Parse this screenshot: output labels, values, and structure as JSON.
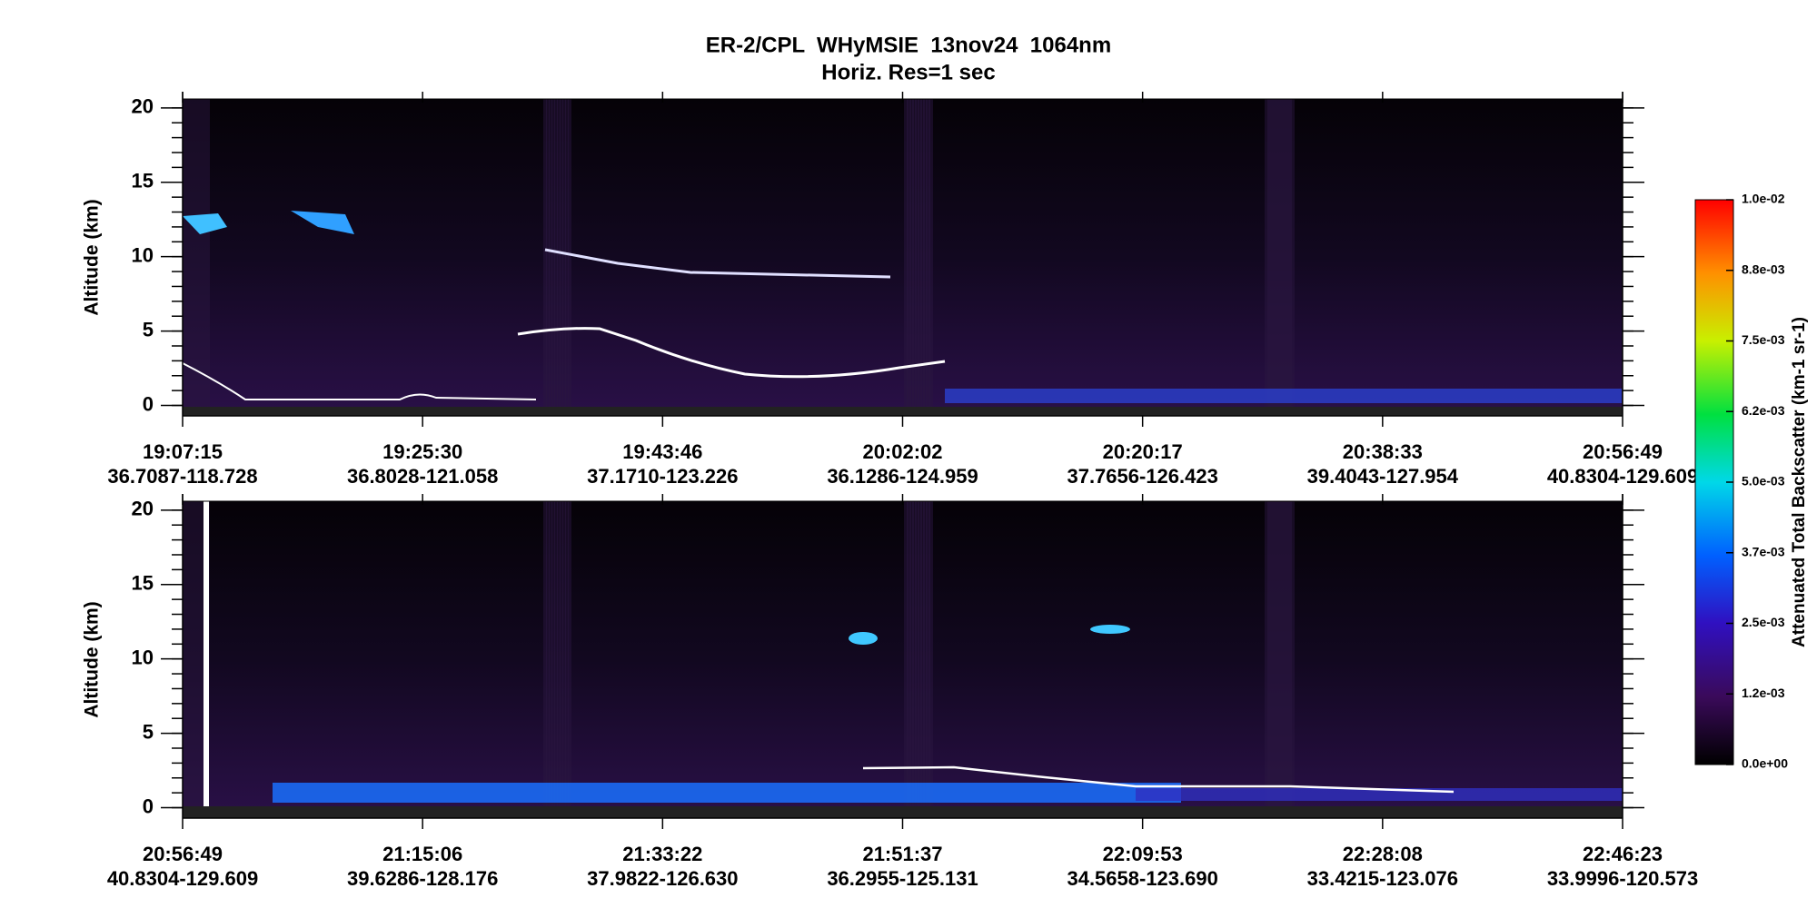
{
  "title": "ER-2/CPL  WHyMSIE  13nov24  1064nm",
  "subtitle": "Horiz. Res=1 sec",
  "chart_data": [
    {
      "type": "heatmap",
      "y_label": "Altitude (km)",
      "ylim": [
        -0.7,
        20.6
      ],
      "yticks": [
        0,
        5,
        10,
        15,
        20
      ],
      "times": [
        "19:07:15",
        "19:25:30",
        "19:43:46",
        "20:02:02",
        "20:20:17",
        "20:38:33",
        "20:56:49"
      ],
      "locations": [
        "36.7087-118.728",
        "36.8028-121.058",
        "37.1710-123.226",
        "36.1286-124.959",
        "37.7656-126.423",
        "39.4043-127.954",
        "40.8304-129.609"
      ]
    },
    {
      "type": "heatmap",
      "y_label": "Altitude (km)",
      "ylim": [
        -0.7,
        20.6
      ],
      "yticks": [
        0,
        5,
        10,
        15,
        20
      ],
      "times": [
        "20:56:49",
        "21:15:06",
        "21:33:22",
        "21:51:37",
        "22:09:53",
        "22:28:08",
        "22:46:23"
      ],
      "locations": [
        "40.8304-129.609",
        "39.6286-128.176",
        "37.9822-126.630",
        "36.2955-125.131",
        "34.5658-123.690",
        "33.4215-123.076",
        "33.9996-120.573"
      ]
    }
  ],
  "colorbar": {
    "label": "Attenuated Total Backscatter (km-1 sr-1)",
    "lim": [
      0,
      0.01
    ],
    "ticks": [
      {
        "value": 0,
        "label": "0.0e+00"
      },
      {
        "value": 0.00125,
        "label": "1.2e-03"
      },
      {
        "value": 0.0025,
        "label": "2.5e-03"
      },
      {
        "value": 0.00375,
        "label": "3.7e-03"
      },
      {
        "value": 0.005,
        "label": "5.0e-03"
      },
      {
        "value": 0.00625,
        "label": "6.2e-03"
      },
      {
        "value": 0.0075,
        "label": "7.5e-03"
      },
      {
        "value": 0.00875,
        "label": "8.8e-03"
      },
      {
        "value": 0.01,
        "label": "1.0e-02"
      }
    ]
  }
}
